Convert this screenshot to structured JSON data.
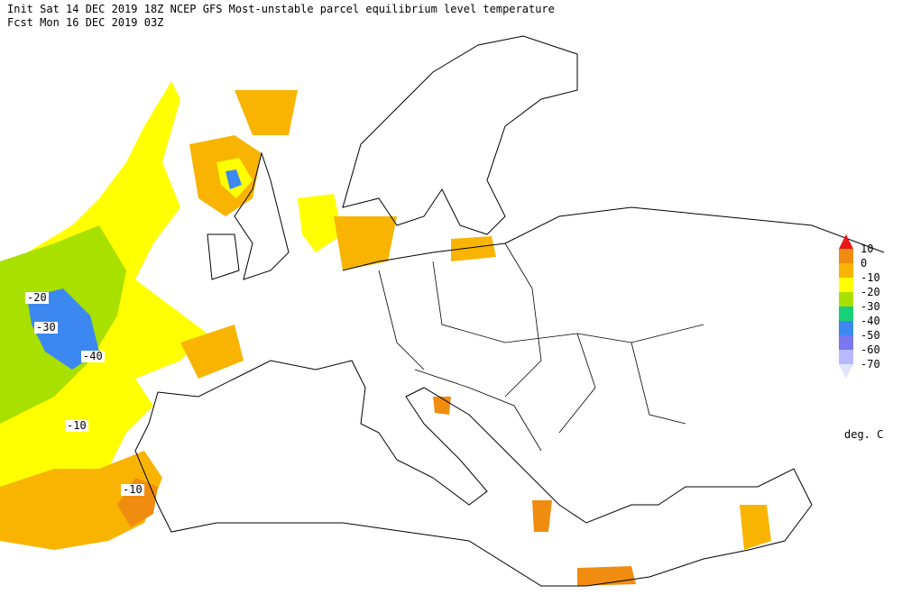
{
  "header": {
    "line1": "Init  Sat 14 DEC 2019 18Z  NCEP GFS Most-unstable parcel equilibrium level temperature",
    "line2": "Fcst Mon 16 DEC 2019 03Z"
  },
  "legend": {
    "items": [
      {
        "label": "10",
        "color": "#e81818"
      },
      {
        "label": "0",
        "color": "#f08c10"
      },
      {
        "label": "-10",
        "color": "#f8b400"
      },
      {
        "label": "-20",
        "color": "#ffff00"
      },
      {
        "label": "-30",
        "color": "#a8e000"
      },
      {
        "label": "-40",
        "color": "#18d078"
      },
      {
        "label": "-50",
        "color": "#3c88f0"
      },
      {
        "label": "-60",
        "color": "#7878f0"
      },
      {
        "label": "-70",
        "color": "#b8b8ff"
      }
    ],
    "end_color": "#e0e4ff",
    "unit": "deg. C"
  },
  "contour_labels": [
    "-20",
    "-30",
    "-40",
    "-10",
    "-10"
  ]
}
